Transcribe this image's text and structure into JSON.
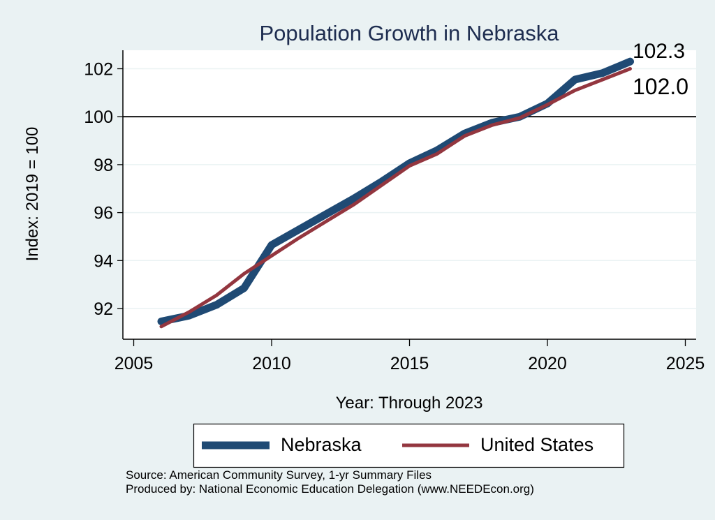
{
  "chart_data": {
    "type": "line",
    "title": "Population Growth in Nebraska",
    "xlabel": "Year: Through 2023",
    "ylabel": "Index: 2019 = 100",
    "xlim": [
      2004.5,
      2025.4
    ],
    "ylim": [
      90.8,
      102.8
    ],
    "xticks": [
      2005,
      2010,
      2015,
      2020,
      2025
    ],
    "xtick_labels": [
      "2005",
      "2010",
      "2015",
      "2020",
      "2025"
    ],
    "yticks": [
      92,
      94,
      96,
      98,
      100,
      102
    ],
    "ytick_labels": [
      "92",
      "94",
      "96",
      "98",
      "100",
      "102"
    ],
    "grid": "horizontal",
    "reference_line": 100,
    "legend_position": "bottom",
    "x": [
      2006,
      2007,
      2008,
      2009,
      2010,
      2011,
      2012,
      2013,
      2014,
      2015,
      2016,
      2017,
      2018,
      2019,
      2020,
      2021,
      2022,
      2023
    ],
    "series": [
      {
        "name": "Nebraska",
        "color": "#1f4a74",
        "values": [
          91.46,
          91.7,
          92.15,
          92.85,
          94.65,
          95.3,
          95.95,
          96.6,
          97.3,
          98.06,
          98.6,
          99.3,
          99.75,
          100.0,
          100.55,
          101.55,
          101.82,
          102.3
        ],
        "end_label": "102.3"
      },
      {
        "name": "United States",
        "color": "#93363f",
        "values": [
          91.25,
          91.85,
          92.55,
          93.45,
          94.2,
          94.95,
          95.65,
          96.35,
          97.15,
          97.95,
          98.45,
          99.2,
          99.65,
          99.95,
          100.5,
          101.1,
          101.55,
          102.0
        ],
        "end_label": "102.0"
      }
    ],
    "notes": [
      "Source: American Community Survey, 1-yr Summary Files",
      "Produced by: National Economic Education Delegation (www.NEEDEcon.org)"
    ]
  },
  "colors": {
    "background": "#eaf2f3",
    "plot_background": "#ffffff",
    "title": "#1e2d50",
    "grid": "#eaf2f3"
  }
}
